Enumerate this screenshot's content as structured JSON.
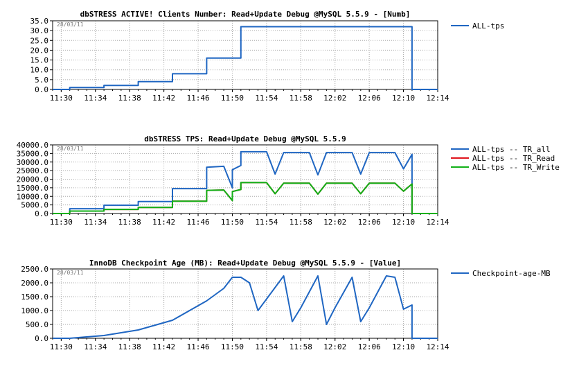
{
  "chart_data": [
    {
      "type": "line",
      "title": "dbSTRESS ACTIVE! Clients Number: Read+Update Debug @MySQL 5.5.9 - [Numb]",
      "date_label": "28/03/11",
      "xlabel": "",
      "ylabel": "",
      "x_ticks": [
        "11:30",
        "11:34",
        "11:38",
        "11:42",
        "11:46",
        "11:50",
        "11:54",
        "11:58",
        "12:02",
        "12:06",
        "12:10",
        "12:14"
      ],
      "xlim": [
        "11:29",
        "12:14"
      ],
      "y_ticks": [
        "0.0",
        "5.0",
        "10.0",
        "15.0",
        "20.0",
        "25.0",
        "30.0",
        "35.0"
      ],
      "ylim": [
        0,
        35
      ],
      "grid": true,
      "legend_position": "right",
      "colors": [
        "#1f66c2"
      ],
      "series": [
        {
          "name": "ALL-tps",
          "color": "#1f66c2",
          "x": [
            "11:29",
            "11:30",
            "11:31",
            "11:31",
            "11:35",
            "11:35",
            "11:39",
            "11:39",
            "11:43",
            "11:43",
            "11:47",
            "11:47",
            "11:51",
            "11:51",
            "12:11",
            "12:11",
            "12:14"
          ],
          "y": [
            0,
            0,
            0,
            1,
            1,
            2,
            2,
            4,
            4,
            8,
            8,
            16,
            16,
            32,
            32,
            0,
            0
          ]
        }
      ]
    },
    {
      "type": "line",
      "title": "dbSTRESS TPS: Read+Update Debug @MySQL 5.5.9",
      "date_label": "28/03/11",
      "xlabel": "",
      "ylabel": "",
      "x_ticks": [
        "11:30",
        "11:34",
        "11:38",
        "11:42",
        "11:46",
        "11:50",
        "11:54",
        "11:58",
        "12:02",
        "12:06",
        "12:10",
        "12:14"
      ],
      "xlim": [
        "11:29",
        "12:14"
      ],
      "y_ticks": [
        "0.0",
        "5000.0",
        "10000.0",
        "15000.0",
        "20000.0",
        "25000.0",
        "30000.0",
        "35000.0",
        "40000.0"
      ],
      "ylim": [
        0,
        40000
      ],
      "grid": true,
      "legend_position": "right",
      "colors": [
        "#1f66c2",
        "#e0141c",
        "#11b017"
      ],
      "series": [
        {
          "name": "ALL-tps -- TR_all",
          "color": "#1f66c2",
          "x": [
            "11:29",
            "11:31",
            "11:31",
            "11:35",
            "11:35",
            "11:39",
            "11:39",
            "11:43",
            "11:43",
            "11:47",
            "11:47",
            "11:49",
            "11:50",
            "11:50",
            "11:51",
            "11:51",
            "11:54",
            "11:55",
            "11:56",
            "11:59",
            "12:00",
            "12:01",
            "12:04",
            "12:05",
            "12:06",
            "12:09",
            "12:10",
            "12:11",
            "12:11",
            "12:14"
          ],
          "y": [
            0,
            0,
            2800,
            2800,
            4800,
            4800,
            7000,
            7000,
            14500,
            14500,
            27000,
            27500,
            15000,
            25500,
            28000,
            36000,
            36000,
            23000,
            35500,
            35500,
            22500,
            35500,
            35500,
            23000,
            35500,
            35500,
            26000,
            34500,
            0,
            0
          ]
        },
        {
          "name": "ALL-tps -- TR_Read",
          "color": "#e0141c",
          "x": [
            "11:29",
            "11:31",
            "11:31",
            "11:35",
            "11:35",
            "11:39",
            "11:39",
            "11:43",
            "11:43",
            "11:47",
            "11:47",
            "11:49",
            "11:50",
            "11:50",
            "11:51",
            "11:51",
            "11:54",
            "11:55",
            "11:56",
            "11:59",
            "12:00",
            "12:01",
            "12:04",
            "12:05",
            "12:06",
            "12:09",
            "12:10",
            "12:11",
            "12:11",
            "12:14"
          ],
          "y": [
            0,
            0,
            1400,
            1400,
            2400,
            2400,
            3500,
            3500,
            7200,
            7200,
            13500,
            13700,
            7500,
            12800,
            14000,
            18000,
            18000,
            11500,
            17700,
            17700,
            11300,
            17700,
            17700,
            11500,
            17700,
            17700,
            13000,
            17200,
            0,
            0
          ]
        },
        {
          "name": "ALL-tps -- TR_Write",
          "color": "#11b017",
          "x": [
            "11:29",
            "11:31",
            "11:31",
            "11:35",
            "11:35",
            "11:39",
            "11:39",
            "11:43",
            "11:43",
            "11:47",
            "11:47",
            "11:49",
            "11:50",
            "11:50",
            "11:51",
            "11:51",
            "11:54",
            "11:55",
            "11:56",
            "11:59",
            "12:00",
            "12:01",
            "12:04",
            "12:05",
            "12:06",
            "12:09",
            "12:10",
            "12:11",
            "12:11",
            "12:14"
          ],
          "y": [
            0,
            0,
            1400,
            1400,
            2400,
            2400,
            3500,
            3500,
            7200,
            7200,
            13500,
            13700,
            7500,
            12800,
            14000,
            18000,
            18000,
            11500,
            17700,
            17700,
            11300,
            17700,
            17700,
            11500,
            17700,
            17700,
            13000,
            17200,
            0,
            0
          ]
        }
      ]
    },
    {
      "type": "line",
      "title": "InnoDB Checkpoint Age (MB): Read+Update Debug @MySQL 5.5.9 - [Value]",
      "date_label": "28/03/11",
      "xlabel": "",
      "ylabel": "",
      "x_ticks": [
        "11:30",
        "11:34",
        "11:38",
        "11:42",
        "11:46",
        "11:50",
        "11:54",
        "11:58",
        "12:02",
        "12:06",
        "12:10",
        "12:14"
      ],
      "xlim": [
        "11:29",
        "12:14"
      ],
      "y_ticks": [
        "0.0",
        "500.0",
        "1000.0",
        "1500.0",
        "2000.0",
        "2500.0"
      ],
      "ylim": [
        0,
        2500
      ],
      "grid": true,
      "legend_position": "right",
      "colors": [
        "#1f66c2"
      ],
      "series": [
        {
          "name": "Checkpoint-age-MB",
          "color": "#1f66c2",
          "x": [
            "11:29",
            "11:31",
            "11:35",
            "11:39",
            "11:43",
            "11:47",
            "11:49",
            "11:50",
            "11:51",
            "11:52",
            "11:53",
            "11:56",
            "11:57",
            "11:58",
            "12:00",
            "12:01",
            "12:02",
            "12:04",
            "12:05",
            "12:06",
            "12:08",
            "12:09",
            "12:10",
            "12:10",
            "12:11",
            "12:11",
            "12:14"
          ],
          "y": [
            0,
            0,
            100,
            300,
            650,
            1350,
            1800,
            2200,
            2200,
            2000,
            1000,
            2250,
            600,
            1100,
            2250,
            500,
            1100,
            2200,
            600,
            1100,
            2250,
            2200,
            1050,
            1050,
            1200,
            0,
            0
          ]
        }
      ]
    }
  ]
}
